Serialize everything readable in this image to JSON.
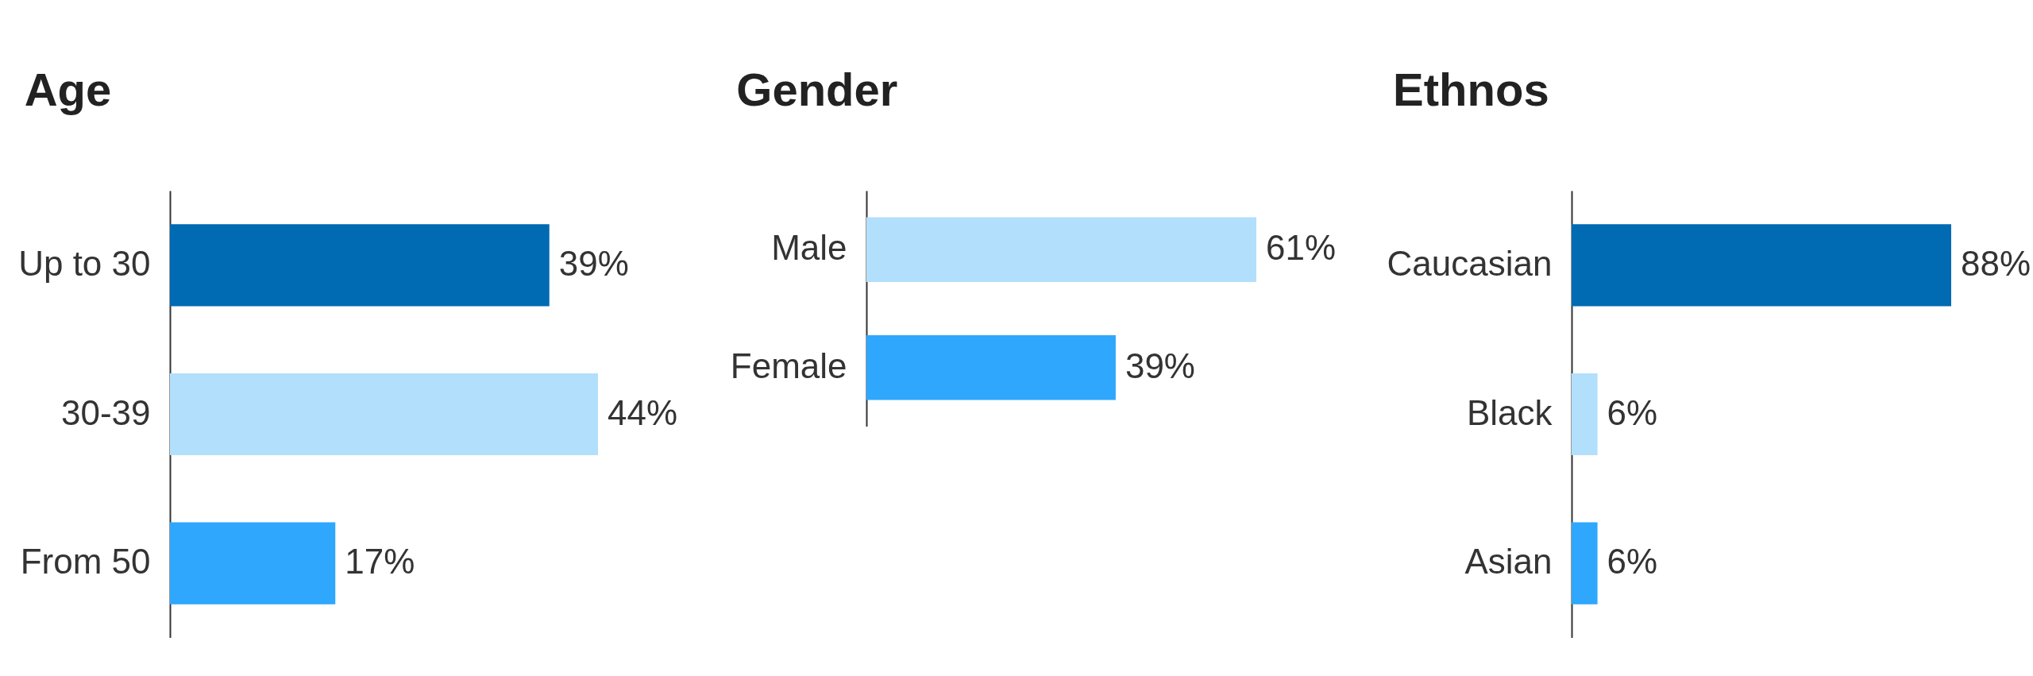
{
  "chart_data": [
    {
      "type": "bar",
      "orientation": "horizontal",
      "title": "Age",
      "categories": [
        "Up to 30",
        "30-39",
        "From 50"
      ],
      "values": [
        39,
        44,
        17
      ],
      "colors": [
        "#006ab3",
        "#b2dffb",
        "#2ea7fd"
      ],
      "value_labels": [
        "39%",
        "44%",
        "17%"
      ],
      "tick_labels": "y"
    },
    {
      "type": "bar",
      "orientation": "horizontal",
      "title": "Gender",
      "categories": [
        "Male",
        "Female"
      ],
      "values": [
        61,
        39
      ],
      "colors": [
        "#b2dffb",
        "#2ea7fd"
      ],
      "value_labels": [
        "61%",
        "39%"
      ],
      "tick_labels": "y"
    },
    {
      "type": "bar",
      "orientation": "horizontal",
      "title": "Ethnos",
      "categories": [
        "Caucasian",
        "Black",
        "Asian"
      ],
      "values": [
        88,
        6,
        6
      ],
      "colors": [
        "#006ab3",
        "#b2dffb",
        "#2ea7fd"
      ],
      "value_labels": [
        "88%",
        "6%",
        "6%"
      ],
      "tick_labels": "y"
    }
  ]
}
